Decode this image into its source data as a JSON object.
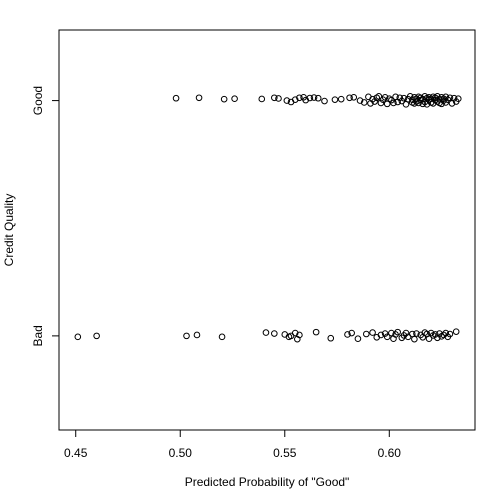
{
  "chart_data": {
    "type": "scatter",
    "xlabel": "Predicted Probability of \"Good\"",
    "ylabel": "Credit Quality",
    "x_ticks": [
      "0.45",
      "0.50",
      "0.55",
      "0.60"
    ],
    "x_tick_values": [
      0.45,
      0.5,
      0.55,
      0.6
    ],
    "xlim": [
      0.442,
      0.641
    ],
    "categories": [
      "Bad",
      "Good"
    ],
    "ylim": [
      0.6,
      2.3
    ],
    "grid": false,
    "points": {
      "Good": {
        "y_center": 2,
        "x": [
          0.498,
          0.509,
          0.521,
          0.526,
          0.539,
          0.545,
          0.547,
          0.551,
          0.553,
          0.555,
          0.557,
          0.559,
          0.56,
          0.562,
          0.564,
          0.566,
          0.569,
          0.574,
          0.577,
          0.581,
          0.583,
          0.586,
          0.588,
          0.59,
          0.591,
          0.592,
          0.593,
          0.594,
          0.595,
          0.596,
          0.597,
          0.598,
          0.599,
          0.6,
          0.601,
          0.602,
          0.603,
          0.604,
          0.605,
          0.606,
          0.607,
          0.608,
          0.609,
          0.61,
          0.611,
          0.611,
          0.612,
          0.612,
          0.613,
          0.613,
          0.614,
          0.614,
          0.615,
          0.615,
          0.616,
          0.616,
          0.617,
          0.617,
          0.618,
          0.618,
          0.619,
          0.619,
          0.62,
          0.62,
          0.621,
          0.621,
          0.622,
          0.622,
          0.623,
          0.623,
          0.624,
          0.624,
          0.625,
          0.625,
          0.626,
          0.626,
          0.627,
          0.627,
          0.628,
          0.629,
          0.63,
          0.631,
          0.632,
          0.633
        ],
        "jitter": [
          0.01,
          0.012,
          0.006,
          0.008,
          0.007,
          0.012,
          0.009,
          0.0,
          -0.006,
          0.004,
          0.012,
          0.014,
          0.002,
          0.011,
          0.013,
          0.01,
          -0.002,
          0.004,
          0.006,
          0.012,
          0.014,
          0.0,
          -0.008,
          0.016,
          -0.012,
          0.006,
          -0.004,
          0.012,
          0.018,
          -0.01,
          0.004,
          0.014,
          -0.014,
          0.008,
          0.002,
          -0.01,
          0.016,
          -0.006,
          0.012,
          -0.002,
          0.01,
          -0.016,
          0.006,
          0.018,
          -0.008,
          0.004,
          0.014,
          -0.012,
          0.008,
          -0.004,
          0.016,
          -0.01,
          0.002,
          0.012,
          -0.014,
          0.006,
          0.018,
          -0.006,
          0.01,
          -0.016,
          0.004,
          0.014,
          -0.008,
          0.008,
          0.016,
          -0.012,
          0.002,
          0.012,
          -0.004,
          0.018,
          -0.01,
          0.006,
          0.014,
          -0.014,
          0.008,
          0.0,
          0.016,
          -0.008,
          0.004,
          0.012,
          -0.012,
          0.01,
          -0.004,
          0.008
        ]
      },
      "Bad": {
        "y_center": 1,
        "x": [
          0.451,
          0.46,
          0.503,
          0.508,
          0.52,
          0.541,
          0.545,
          0.55,
          0.552,
          0.553,
          0.555,
          0.556,
          0.557,
          0.565,
          0.572,
          0.58,
          0.582,
          0.585,
          0.589,
          0.592,
          0.594,
          0.596,
          0.598,
          0.599,
          0.601,
          0.602,
          0.603,
          0.604,
          0.606,
          0.607,
          0.608,
          0.609,
          0.611,
          0.612,
          0.613,
          0.615,
          0.616,
          0.617,
          0.618,
          0.619,
          0.62,
          0.621,
          0.622,
          0.623,
          0.624,
          0.625,
          0.626,
          0.627,
          0.628,
          0.629,
          0.632
        ],
        "jitter": [
          -0.004,
          0.0,
          0.0,
          0.004,
          -0.004,
          0.014,
          0.01,
          0.006,
          -0.004,
          0.0,
          0.012,
          -0.014,
          0.004,
          0.016,
          -0.01,
          0.006,
          0.012,
          -0.012,
          0.008,
          0.014,
          -0.006,
          0.004,
          0.01,
          -0.004,
          0.012,
          -0.012,
          0.006,
          0.016,
          -0.008,
          0.002,
          0.012,
          -0.004,
          0.008,
          -0.014,
          0.01,
          0.004,
          -0.006,
          0.014,
          0.008,
          -0.012,
          0.012,
          0.002,
          0.006,
          -0.008,
          0.01,
          -0.002,
          0.004,
          0.012,
          -0.004,
          0.008,
          0.018
        ]
      }
    }
  }
}
